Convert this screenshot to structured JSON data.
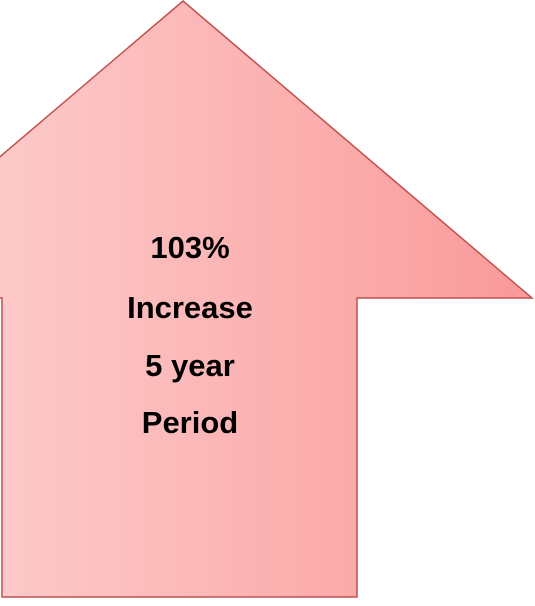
{
  "shape": {
    "label_lines": [
      "103%",
      "Increase",
      "5 year",
      "Period"
    ]
  }
}
